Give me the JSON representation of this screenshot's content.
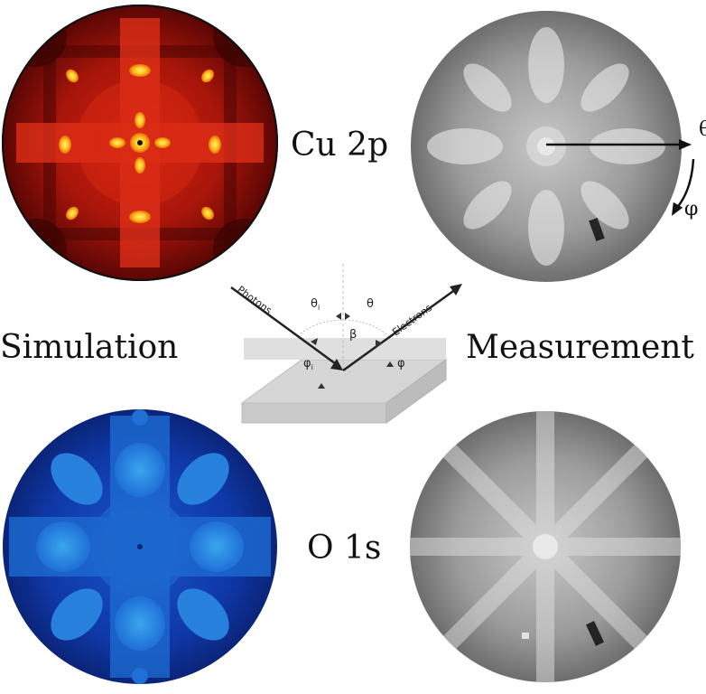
{
  "labels": {
    "simulation": "Simulation",
    "measurement": "Measurement",
    "cu": "Cu 2p",
    "o": "O 1s"
  },
  "axes": {
    "theta": "θ",
    "phi": "φ"
  },
  "schematic": {
    "photons": "Photons",
    "electrons": "Electrons",
    "theta_i": "θ",
    "theta_i_sub": "i",
    "theta": "θ",
    "beta": "β",
    "phi_i": "φ",
    "phi_i_sub": "i",
    "phi": "φ"
  },
  "colors": {
    "cu_sim_background": "#7a0a06",
    "cu_sim_peak": "#ffd21e",
    "o_sim_background": "#0a2a8c",
    "o_sim_feature": "#2f8fe0",
    "measurement_gray": "#9a9a9a",
    "surface_slab": "#d2d2d2"
  }
}
